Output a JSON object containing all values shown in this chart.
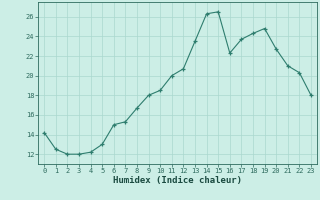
{
  "x": [
    0,
    1,
    2,
    3,
    4,
    5,
    6,
    7,
    8,
    9,
    10,
    11,
    12,
    13,
    14,
    15,
    16,
    17,
    18,
    19,
    20,
    21,
    22,
    23
  ],
  "y": [
    14.2,
    12.5,
    12.0,
    12.0,
    12.2,
    13.0,
    15.0,
    15.3,
    16.7,
    18.0,
    18.5,
    20.0,
    20.7,
    23.5,
    26.3,
    26.5,
    22.3,
    23.7,
    24.3,
    24.8,
    22.7,
    21.0,
    20.3,
    18.0
  ],
  "xlabel": "Humidex (Indice chaleur)",
  "xlim": [
    -0.5,
    23.5
  ],
  "ylim": [
    11,
    27.5
  ],
  "yticks": [
    12,
    14,
    16,
    18,
    20,
    22,
    24,
    26
  ],
  "xticks": [
    0,
    1,
    2,
    3,
    4,
    5,
    6,
    7,
    8,
    9,
    10,
    11,
    12,
    13,
    14,
    15,
    16,
    17,
    18,
    19,
    20,
    21,
    22,
    23
  ],
  "line_color": "#2e7d6e",
  "marker": "+",
  "bg_color": "#cceee6",
  "grid_color": "#aad8cf",
  "tick_color": "#2e6b5e",
  "label_color": "#1a4a40"
}
